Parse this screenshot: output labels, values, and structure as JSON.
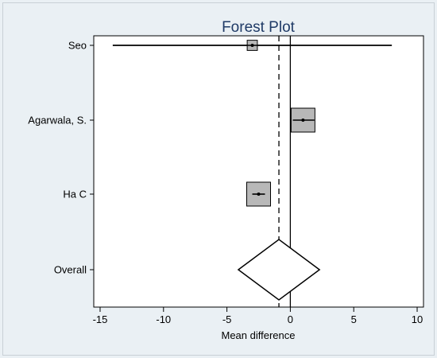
{
  "chart_data": {
    "type": "forest",
    "title": "Forest Plot",
    "xlabel": "Mean difference",
    "ylabel": "",
    "xlim": [
      -15.5,
      10.5
    ],
    "xticks": [
      -15,
      -10,
      -5,
      0,
      5,
      10
    ],
    "xtick_labels": [
      "-15",
      "-10",
      "-5",
      "0",
      "5",
      "10"
    ],
    "null_line": 0,
    "pooled_line": -0.9,
    "grid": false,
    "studies": [
      {
        "name": "Seo",
        "estimate": -3,
        "ci_lower": -14,
        "ci_upper": 8,
        "weight": 0.12
      },
      {
        "name": "Agarwala, S.",
        "estimate": 1,
        "ci_lower": 0.2,
        "ci_upper": 1.9,
        "weight": 0.55
      },
      {
        "name": "Ha C",
        "estimate": -2.5,
        "ci_lower": -3,
        "ci_upper": -2,
        "weight": 0.55
      }
    ],
    "overall": {
      "name": "Overall",
      "estimate": -0.9,
      "ci_lower": -4.1,
      "ci_upper": 2.3
    }
  }
}
